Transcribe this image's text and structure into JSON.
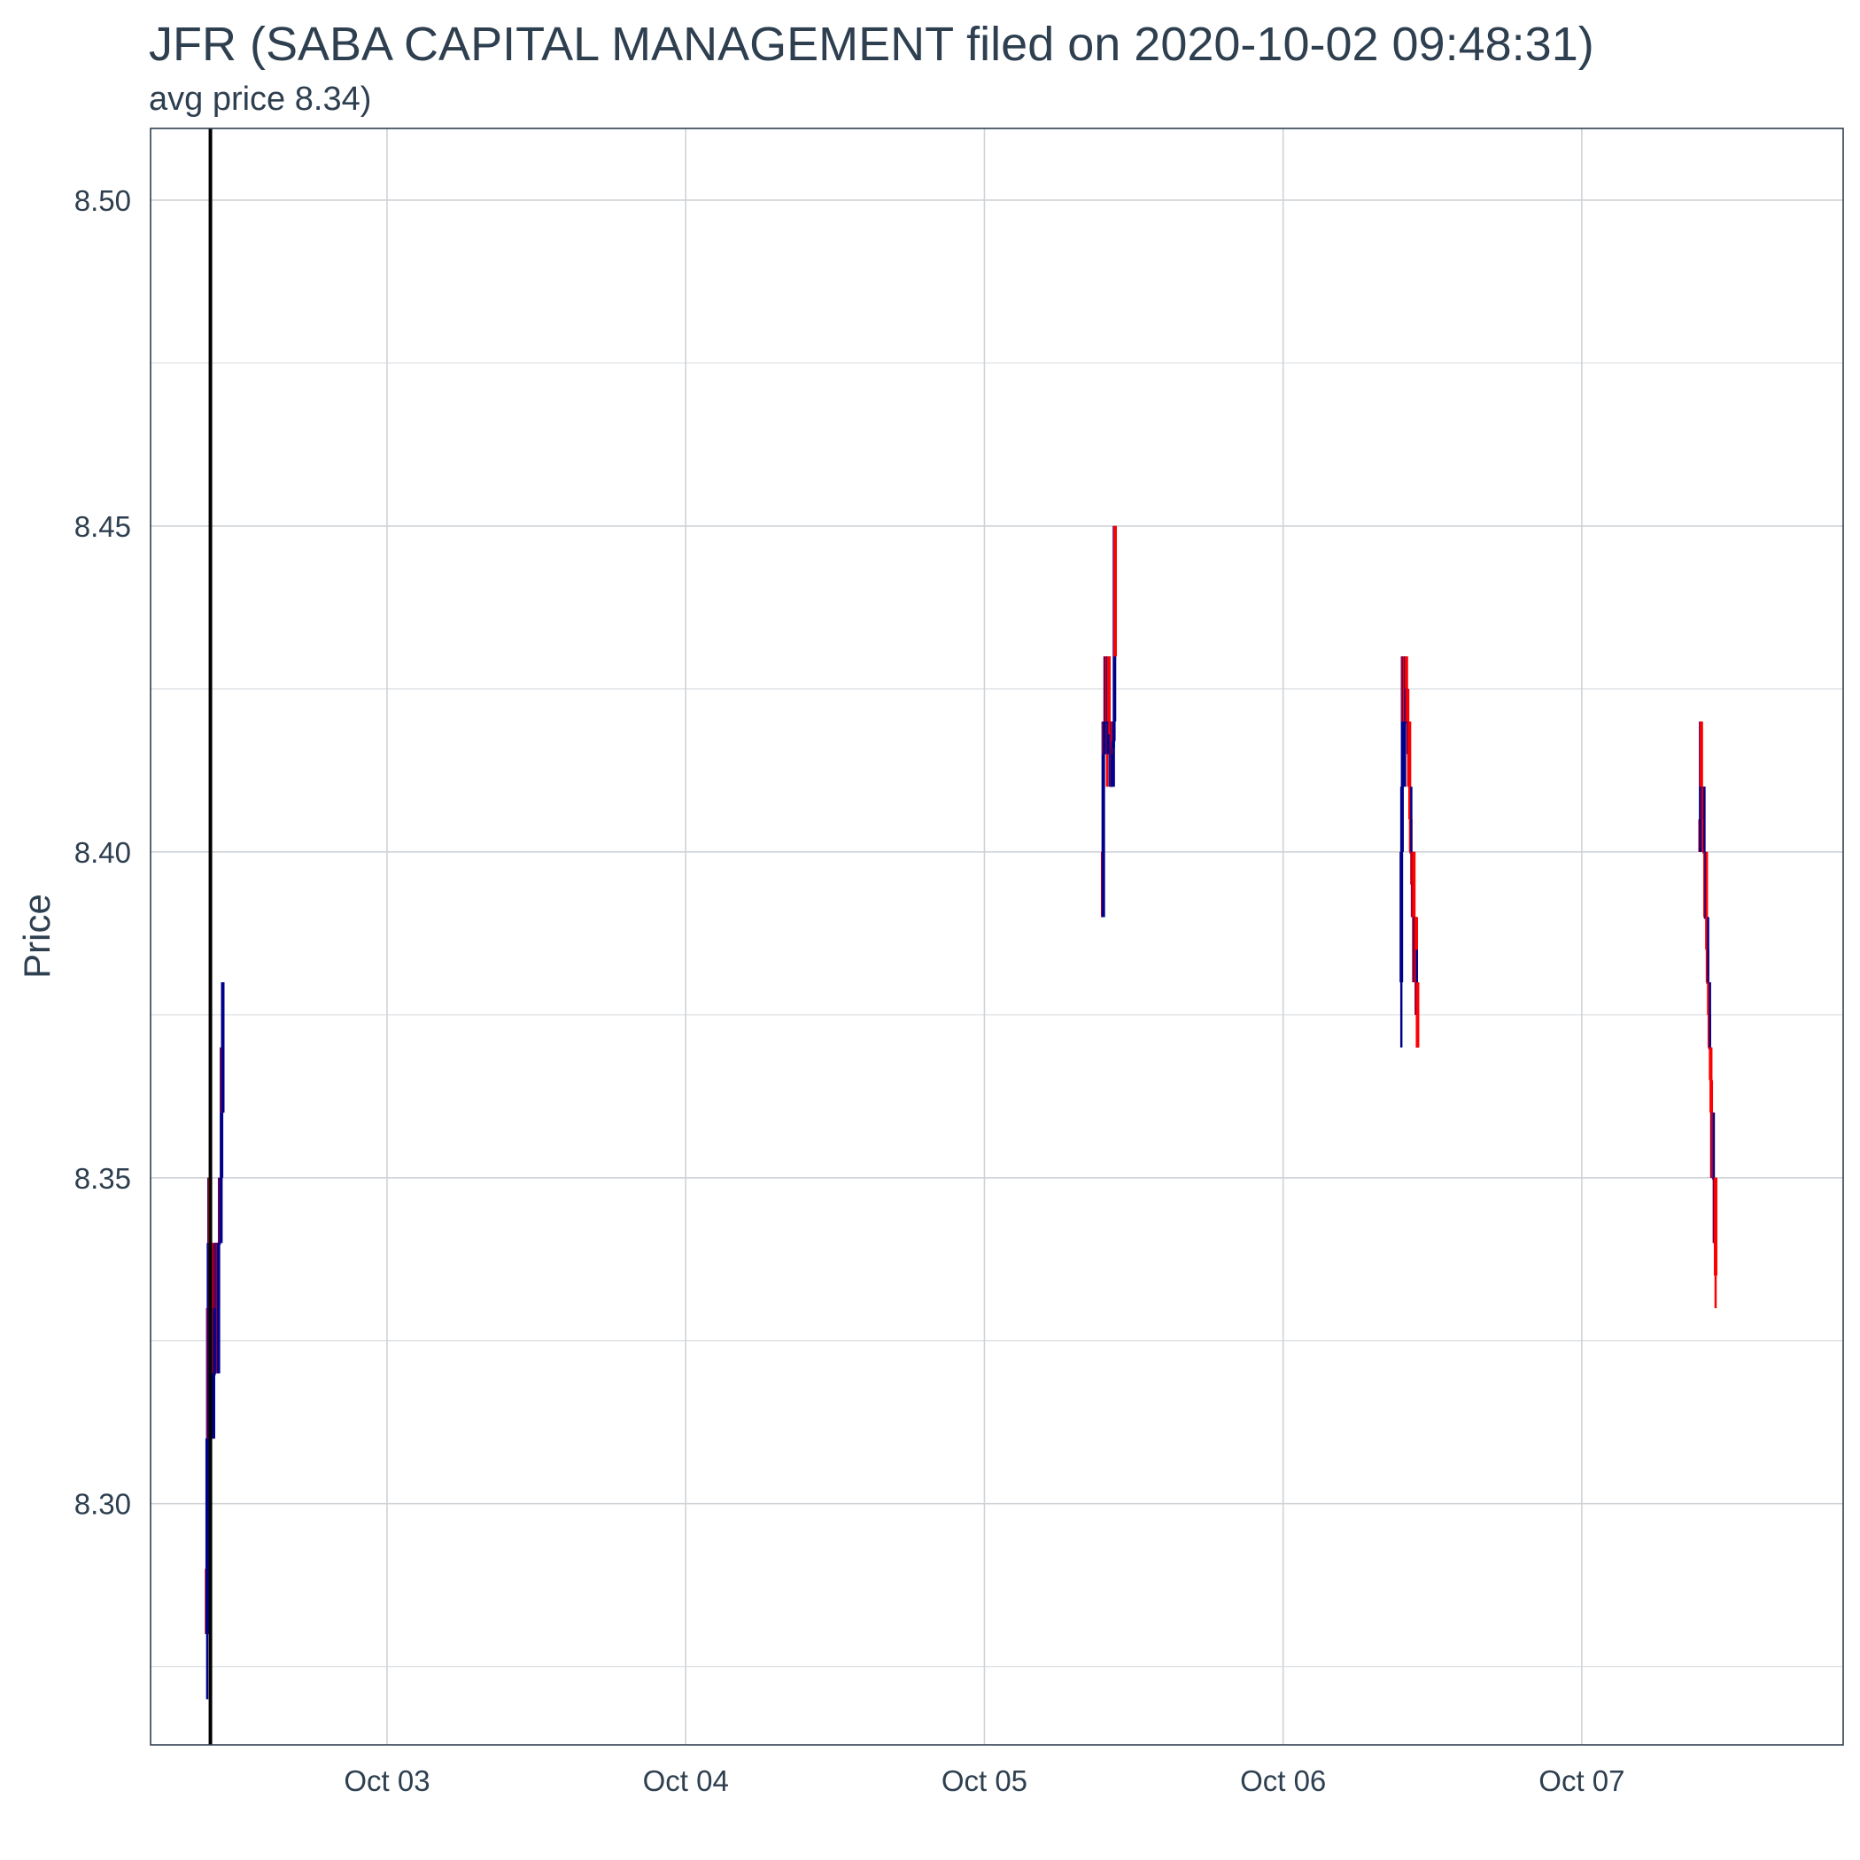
{
  "chart_data": {
    "type": "candlestick",
    "title": "JFR (SABA CAPITAL MANAGEMENT filed on 2020-10-02 09:48:31)",
    "subtitle": "avg price 8.34)",
    "xlabel": "",
    "ylabel": "Price",
    "x_range": [
      "2020-10-02 05:00",
      "2020-10-07 21:00"
    ],
    "y_range": [
      8.263,
      8.511
    ],
    "y_ticks": [
      8.3,
      8.35,
      8.4,
      8.45,
      8.5
    ],
    "y_tick_labels": [
      "8.30",
      "8.35",
      "8.40",
      "8.45",
      "8.50"
    ],
    "x_ticks": [
      "2020-10-03 00:00",
      "2020-10-04 00:00",
      "2020-10-05 00:00",
      "2020-10-06 00:00",
      "2020-10-07 00:00"
    ],
    "x_tick_labels": [
      "Oct 03",
      "Oct 04",
      "Oct 05",
      "Oct 06",
      "Oct 07"
    ],
    "grid": true,
    "up_color": "#00008b",
    "down_color": "#ff0000",
    "filing_marker": {
      "time": "2020-10-02 09:48:31",
      "color": "#000000"
    },
    "sessions": [
      {
        "start": "2020-10-02 09:30",
        "interval_minutes": 3,
        "candles": [
          [
            8.29,
            8.29,
            8.28,
            8.28
          ],
          [
            8.28,
            8.31,
            8.27,
            8.31
          ],
          [
            8.31,
            8.34,
            8.31,
            8.33
          ],
          [
            8.33,
            8.34,
            8.31,
            8.31
          ],
          [
            8.31,
            8.35,
            8.31,
            8.35
          ],
          [
            8.35,
            8.35,
            8.34,
            8.34
          ],
          [
            8.34,
            8.34,
            8.31,
            8.31
          ],
          [
            8.31,
            8.32,
            8.31,
            8.32
          ],
          [
            8.32,
            8.34,
            8.32,
            8.34
          ],
          [
            8.34,
            8.34,
            8.33,
            8.33
          ],
          [
            8.33,
            8.33,
            8.31,
            8.31
          ],
          [
            8.31,
            8.32,
            8.31,
            8.32
          ],
          [
            8.32,
            8.32,
            8.31,
            8.32
          ],
          [
            8.32,
            8.34,
            8.32,
            8.33
          ],
          [
            8.33,
            8.34,
            8.33,
            8.34
          ],
          [
            8.34,
            8.34,
            8.33,
            8.34
          ],
          [
            8.34,
            8.34,
            8.33,
            8.33
          ],
          [
            8.33,
            8.34,
            8.33,
            8.34
          ],
          [
            8.34,
            8.34,
            8.32,
            8.32
          ],
          [
            8.32,
            8.34,
            8.32,
            8.34
          ],
          [
            8.34,
            8.34,
            8.33,
            8.34
          ],
          [
            8.34,
            8.35,
            8.34,
            8.35
          ],
          [
            8.35,
            8.35,
            8.34,
            8.34
          ],
          [
            8.34,
            8.35,
            8.34,
            8.35
          ],
          [
            8.35,
            8.37,
            8.35,
            8.37
          ],
          [
            8.37,
            8.37,
            8.36,
            8.36
          ],
          [
            8.36,
            8.38,
            8.36,
            8.38
          ]
        ]
      },
      {
        "start": "2020-10-05 09:30",
        "interval_minutes": 3,
        "candles": [
          [
            8.4,
            8.4,
            8.39,
            8.39
          ],
          [
            8.39,
            8.42,
            8.39,
            8.42
          ],
          [
            8.42,
            8.42,
            8.415,
            8.415
          ],
          [
            8.415,
            8.42,
            8.415,
            8.42
          ],
          [
            8.42,
            8.43,
            8.42,
            8.43
          ],
          [
            8.43,
            8.43,
            8.42,
            8.42
          ],
          [
            8.42,
            8.43,
            8.42,
            8.43
          ],
          [
            8.43,
            8.43,
            8.41,
            8.42
          ],
          [
            8.42,
            8.43,
            8.415,
            8.42
          ],
          [
            8.42,
            8.43,
            8.42,
            8.43
          ],
          [
            8.43,
            8.43,
            8.42,
            8.42
          ],
          [
            8.42,
            8.42,
            8.41,
            8.42
          ],
          [
            8.42,
            8.42,
            8.418,
            8.418
          ],
          [
            8.418,
            8.418,
            8.41,
            8.418
          ],
          [
            8.418,
            8.418,
            8.41,
            8.41
          ],
          [
            8.41,
            8.42,
            8.41,
            8.42
          ],
          [
            8.42,
            8.42,
            8.415,
            8.416
          ],
          [
            8.416,
            8.417,
            8.415,
            8.417
          ],
          [
            8.417,
            8.42,
            8.41,
            8.42
          ],
          [
            8.42,
            8.45,
            8.42,
            8.45
          ],
          [
            8.45,
            8.45,
            8.43,
            8.43
          ]
        ]
      },
      {
        "start": "2020-10-06 09:30",
        "interval_minutes": 3,
        "candles": [
          [
            8.38,
            8.4,
            8.37,
            8.4
          ],
          [
            8.4,
            8.41,
            8.4,
            8.41
          ],
          [
            8.41,
            8.43,
            8.4,
            8.43
          ],
          [
            8.43,
            8.43,
            8.42,
            8.42
          ],
          [
            8.42,
            8.43,
            8.42,
            8.43
          ],
          [
            8.43,
            8.43,
            8.42,
            8.42
          ],
          [
            8.42,
            8.42,
            8.41,
            8.42
          ],
          [
            8.42,
            8.43,
            8.42,
            8.43
          ],
          [
            8.43,
            8.43,
            8.42,
            8.42
          ],
          [
            8.42,
            8.425,
            8.42,
            8.425
          ],
          [
            8.425,
            8.425,
            8.42,
            8.42
          ],
          [
            8.42,
            8.42,
            8.41,
            8.415
          ],
          [
            8.415,
            8.42,
            8.41,
            8.42
          ],
          [
            8.42,
            8.42,
            8.41,
            8.41
          ],
          [
            8.41,
            8.41,
            8.405,
            8.405
          ],
          [
            8.405,
            8.41,
            8.4,
            8.4
          ],
          [
            8.4,
            8.41,
            8.4,
            8.4
          ],
          [
            8.4,
            8.4,
            8.395,
            8.395
          ],
          [
            8.395,
            8.395,
            8.39,
            8.39
          ],
          [
            8.39,
            8.4,
            8.39,
            8.4
          ],
          [
            8.4,
            8.4,
            8.38,
            8.38
          ],
          [
            8.38,
            8.39,
            8.38,
            8.39
          ],
          [
            8.39,
            8.39,
            8.38,
            8.38
          ],
          [
            8.38,
            8.39,
            8.38,
            8.39
          ],
          [
            8.39,
            8.39,
            8.375,
            8.375
          ],
          [
            8.375,
            8.385,
            8.37,
            8.38
          ],
          [
            8.38,
            8.38,
            8.37,
            8.37
          ]
        ]
      },
      {
        "start": "2020-10-07 09:30",
        "interval_minutes": 3,
        "candles": [
          [
            8.405,
            8.405,
            8.4,
            8.4
          ],
          [
            8.4,
            8.42,
            8.4,
            8.42
          ],
          [
            8.42,
            8.42,
            8.41,
            8.41
          ],
          [
            8.41,
            8.41,
            8.4,
            8.41
          ],
          [
            8.41,
            8.41,
            8.4,
            8.405
          ],
          [
            8.405,
            8.41,
            8.4,
            8.41
          ],
          [
            8.41,
            8.41,
            8.4,
            8.4
          ],
          [
            8.4,
            8.41,
            8.4,
            8.4
          ],
          [
            8.4,
            8.4,
            8.39,
            8.39
          ],
          [
            8.39,
            8.4,
            8.39,
            8.39
          ],
          [
            8.39,
            8.4,
            8.39,
            8.39
          ],
          [
            8.39,
            8.4,
            8.385,
            8.385
          ],
          [
            8.385,
            8.39,
            8.38,
            8.38
          ],
          [
            8.38,
            8.39,
            8.38,
            8.38
          ],
          [
            8.38,
            8.38,
            8.37,
            8.375
          ],
          [
            8.375,
            8.38,
            8.37,
            8.37
          ],
          [
            8.37,
            8.38,
            8.37,
            8.37
          ],
          [
            8.37,
            8.37,
            8.365,
            8.365
          ],
          [
            8.365,
            8.37,
            8.36,
            8.36
          ],
          [
            8.36,
            8.36,
            8.35,
            8.35
          ],
          [
            8.35,
            8.36,
            8.35,
            8.36
          ],
          [
            8.36,
            8.36,
            8.35,
            8.35
          ],
          [
            8.35,
            8.36,
            8.35,
            8.35
          ],
          [
            8.35,
            8.35,
            8.34,
            8.34
          ],
          [
            8.34,
            8.35,
            8.34,
            8.35
          ],
          [
            8.35,
            8.35,
            8.33,
            8.335
          ]
        ]
      }
    ]
  }
}
